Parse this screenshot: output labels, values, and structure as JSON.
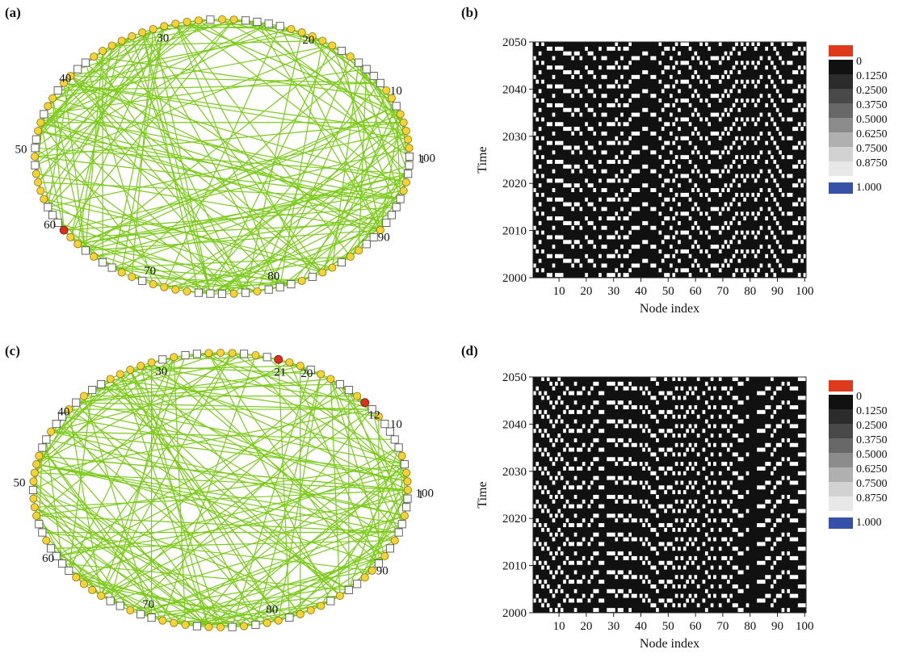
{
  "figure": {
    "panels": [
      {
        "letter": "(a)"
      },
      {
        "letter": "(b)"
      },
      {
        "letter": "(c)"
      },
      {
        "letter": "(d)"
      }
    ]
  },
  "network_a": {
    "node_count": 100,
    "labels": [
      "1",
      "10",
      "20",
      "30",
      "40",
      "50",
      "60",
      "70",
      "80",
      "90",
      "100"
    ],
    "highlighted_nodes": [
      "60"
    ],
    "highlight_color": "#d63020",
    "circle_node_color": "#f5d23a",
    "square_node_color": "#ffffff",
    "edge_color": "#7ccb1a"
  },
  "network_c": {
    "node_count": 100,
    "labels": [
      "1",
      "10",
      "12",
      "20",
      "21",
      "30",
      "40",
      "50",
      "60",
      "70",
      "80",
      "90",
      "100"
    ],
    "highlighted_nodes": [
      "12",
      "21"
    ],
    "highlight_color": "#d63020",
    "circle_node_color": "#f5d23a",
    "square_node_color": "#ffffff",
    "edge_color": "#7ccb1a"
  },
  "chart_data": [
    {
      "panel": "(b)",
      "type": "heatmap",
      "xlabel": "Node index",
      "ylabel": "Time",
      "xticks": [
        "10",
        "20",
        "30",
        "40",
        "50",
        "60",
        "70",
        "80",
        "90",
        "100"
      ],
      "yticks": [
        "2000",
        "2010",
        "2020",
        "2030",
        "2040",
        "2050"
      ],
      "xlim": [
        1,
        100
      ],
      "ylim": [
        2000,
        2050
      ],
      "legend": [
        "0",
        "0.1250",
        "0.2500",
        "0.3750",
        "0.5000",
        "0.6250",
        "0.7500",
        "0.8750",
        "1.000"
      ],
      "legend_colors": [
        "#e03a1e",
        "#111111",
        "#2c2c2c",
        "#494949",
        "#686868",
        "#8c8c8c",
        "#b0b0b0",
        "#d2d2d2",
        "#e8e8e8",
        "#3552a8"
      ],
      "legend_placement": "right",
      "pattern": "periodic white stripes on black background, period about 4 time steps"
    },
    {
      "panel": "(d)",
      "type": "heatmap",
      "xlabel": "Node index",
      "ylabel": "Time",
      "xticks": [
        "10",
        "20",
        "30",
        "40",
        "50",
        "60",
        "70",
        "80",
        "90",
        "100"
      ],
      "yticks": [
        "2000",
        "2010",
        "2020",
        "2030",
        "2040",
        "2050"
      ],
      "xlim": [
        1,
        100
      ],
      "ylim": [
        2000,
        2050
      ],
      "legend": [
        "0",
        "0.1250",
        "0.2500",
        "0.3750",
        "0.5000",
        "0.6250",
        "0.7500",
        "0.8750",
        "1.000"
      ],
      "legend_colors": [
        "#e03a1e",
        "#111111",
        "#2c2c2c",
        "#494949",
        "#686868",
        "#8c8c8c",
        "#b0b0b0",
        "#d2d2d2",
        "#e8e8e8",
        "#3552a8"
      ],
      "legend_placement": "right",
      "pattern": "periodic white stripes on black background with diagonal zig-zag drift, period about 4 time steps"
    }
  ]
}
